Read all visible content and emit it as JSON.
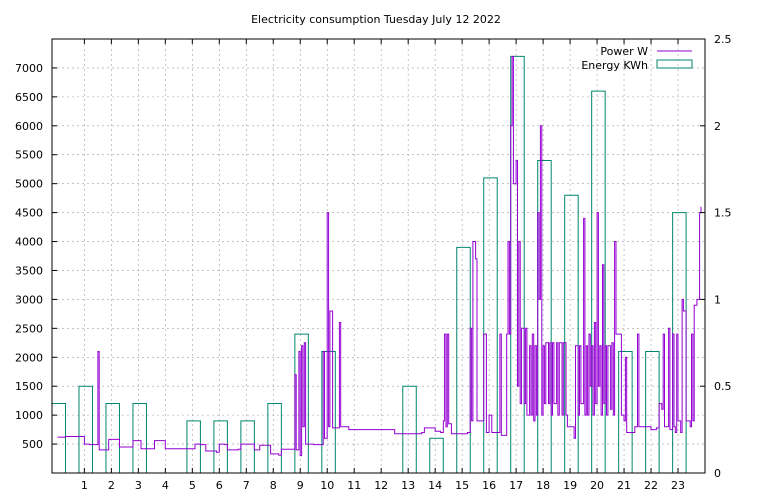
{
  "chart_data": {
    "type": "line",
    "title": "Electricity consumption Tuesday July 12 2022",
    "legend_position": "top-right",
    "grid": true,
    "x_axis": {
      "range": [
        -0.2,
        24
      ],
      "ticks": [
        1,
        2,
        3,
        4,
        5,
        6,
        7,
        8,
        9,
        10,
        11,
        12,
        13,
        14,
        15,
        16,
        17,
        18,
        19,
        20,
        21,
        22,
        23
      ]
    },
    "y_left": {
      "label": "",
      "range": [
        0,
        7500
      ],
      "ticks": [
        500,
        1000,
        1500,
        2000,
        2500,
        3000,
        3500,
        4000,
        4500,
        5000,
        5500,
        6000,
        6500,
        7000
      ]
    },
    "y_right": {
      "label": "",
      "range": [
        0,
        2.5
      ],
      "ticks": [
        0,
        0.5,
        1,
        1.5,
        2,
        2.5
      ]
    },
    "series": [
      {
        "name": "Power W",
        "axis": "left",
        "color": "#9400d3",
        "points": [
          [
            0.0,
            620
          ],
          [
            0.3,
            630
          ],
          [
            0.6,
            630
          ],
          [
            0.9,
            630
          ],
          [
            1.0,
            500
          ],
          [
            1.2,
            490
          ],
          [
            1.4,
            490
          ],
          [
            1.5,
            2100
          ],
          [
            1.55,
            400
          ],
          [
            1.8,
            400
          ],
          [
            1.9,
            580
          ],
          [
            2.1,
            580
          ],
          [
            2.3,
            450
          ],
          [
            2.6,
            450
          ],
          [
            2.8,
            560
          ],
          [
            3.0,
            560
          ],
          [
            3.1,
            420
          ],
          [
            3.5,
            420
          ],
          [
            3.6,
            560
          ],
          [
            3.9,
            560
          ],
          [
            4.0,
            420
          ],
          [
            4.5,
            420
          ],
          [
            5.0,
            420
          ],
          [
            5.1,
            500
          ],
          [
            5.3,
            490
          ],
          [
            5.5,
            380
          ],
          [
            5.9,
            360
          ],
          [
            6.0,
            500
          ],
          [
            6.2,
            490
          ],
          [
            6.3,
            400
          ],
          [
            6.7,
            410
          ],
          [
            6.8,
            500
          ],
          [
            7.2,
            500
          ],
          [
            7.3,
            400
          ],
          [
            7.5,
            480
          ],
          [
            7.8,
            480
          ],
          [
            7.9,
            330
          ],
          [
            8.2,
            310
          ],
          [
            8.3,
            410
          ],
          [
            8.6,
            410
          ],
          [
            8.8,
            1700
          ],
          [
            8.85,
            400
          ],
          [
            8.95,
            2100
          ],
          [
            9.0,
            300
          ],
          [
            9.05,
            2200
          ],
          [
            9.1,
            800
          ],
          [
            9.15,
            2250
          ],
          [
            9.2,
            500
          ],
          [
            9.5,
            490
          ],
          [
            9.8,
            490
          ],
          [
            9.85,
            2100
          ],
          [
            9.9,
            600
          ],
          [
            10.0,
            4500
          ],
          [
            10.05,
            800
          ],
          [
            10.1,
            2800
          ],
          [
            10.2,
            780
          ],
          [
            10.4,
            780
          ],
          [
            10.45,
            2600
          ],
          [
            10.5,
            800
          ],
          [
            10.8,
            750
          ],
          [
            11.5,
            750
          ],
          [
            12.0,
            750
          ],
          [
            12.5,
            680
          ],
          [
            13.0,
            680
          ],
          [
            13.5,
            700
          ],
          [
            13.6,
            780
          ],
          [
            13.9,
            780
          ],
          [
            14.0,
            720
          ],
          [
            14.2,
            700
          ],
          [
            14.3,
            900
          ],
          [
            14.35,
            2400
          ],
          [
            14.4,
            800
          ],
          [
            14.45,
            2400
          ],
          [
            14.5,
            850
          ],
          [
            14.6,
            680
          ],
          [
            15.0,
            680
          ],
          [
            15.2,
            700
          ],
          [
            15.3,
            2500
          ],
          [
            15.35,
            900
          ],
          [
            15.4,
            4000
          ],
          [
            15.5,
            3700
          ],
          [
            15.55,
            900
          ],
          [
            15.7,
            900
          ],
          [
            15.8,
            2400
          ],
          [
            15.9,
            700
          ],
          [
            16.0,
            1000
          ],
          [
            16.1,
            700
          ],
          [
            16.3,
            700
          ],
          [
            16.4,
            2400
          ],
          [
            16.45,
            650
          ],
          [
            16.6,
            650
          ],
          [
            16.65,
            2400
          ],
          [
            16.7,
            4000
          ],
          [
            16.75,
            2400
          ],
          [
            16.8,
            6000
          ],
          [
            16.85,
            7200
          ],
          [
            16.9,
            5000
          ],
          [
            17.0,
            5400
          ],
          [
            17.05,
            1500
          ],
          [
            17.1,
            4000
          ],
          [
            17.15,
            1200
          ],
          [
            17.2,
            2500
          ],
          [
            17.3,
            1200
          ],
          [
            17.35,
            2500
          ],
          [
            17.4,
            1000
          ],
          [
            17.5,
            2200
          ],
          [
            17.55,
            1000
          ],
          [
            17.6,
            2400
          ],
          [
            17.65,
            900
          ],
          [
            17.7,
            2200
          ],
          [
            17.75,
            1000
          ],
          [
            17.8,
            4500
          ],
          [
            17.85,
            3000
          ],
          [
            17.9,
            6000
          ],
          [
            17.95,
            1000
          ],
          [
            18.0,
            2200
          ],
          [
            18.05,
            1200
          ],
          [
            18.1,
            2250
          ],
          [
            18.2,
            1200
          ],
          [
            18.25,
            2250
          ],
          [
            18.3,
            1000
          ],
          [
            18.35,
            2250
          ],
          [
            18.4,
            1200
          ],
          [
            18.5,
            2250
          ],
          [
            18.55,
            1000
          ],
          [
            18.6,
            2250
          ],
          [
            18.7,
            1000
          ],
          [
            18.75,
            2250
          ],
          [
            18.85,
            1000
          ],
          [
            18.9,
            800
          ],
          [
            19.1,
            800
          ],
          [
            19.15,
            600
          ],
          [
            19.2,
            2200
          ],
          [
            19.3,
            1000
          ],
          [
            19.35,
            2200
          ],
          [
            19.4,
            1200
          ],
          [
            19.5,
            4400
          ],
          [
            19.55,
            1000
          ],
          [
            19.6,
            2200
          ],
          [
            19.65,
            1000
          ],
          [
            19.7,
            2400
          ],
          [
            19.75,
            1500
          ],
          [
            19.8,
            2200
          ],
          [
            19.85,
            1000
          ],
          [
            19.9,
            2600
          ],
          [
            19.95,
            1200
          ],
          [
            20.0,
            4500
          ],
          [
            20.05,
            1500
          ],
          [
            20.1,
            2200
          ],
          [
            20.15,
            1000
          ],
          [
            20.2,
            3600
          ],
          [
            20.25,
            1200
          ],
          [
            20.3,
            2200
          ],
          [
            20.35,
            1000
          ],
          [
            20.4,
            2200
          ],
          [
            20.5,
            1100
          ],
          [
            20.55,
            2250
          ],
          [
            20.6,
            1000
          ],
          [
            20.65,
            4000
          ],
          [
            20.7,
            2400
          ],
          [
            20.8,
            2400
          ],
          [
            20.9,
            1000
          ],
          [
            21.0,
            900
          ],
          [
            21.05,
            2000
          ],
          [
            21.1,
            700
          ],
          [
            21.3,
            700
          ],
          [
            21.4,
            800
          ],
          [
            21.5,
            2400
          ],
          [
            21.55,
            800
          ],
          [
            21.8,
            800
          ],
          [
            22.0,
            750
          ],
          [
            22.2,
            780
          ],
          [
            22.3,
            1200
          ],
          [
            22.4,
            1100
          ],
          [
            22.45,
            2400
          ],
          [
            22.5,
            800
          ],
          [
            22.6,
            800
          ],
          [
            22.65,
            2500
          ],
          [
            22.7,
            750
          ],
          [
            22.8,
            2400
          ],
          [
            22.85,
            800
          ],
          [
            22.9,
            700
          ],
          [
            22.95,
            2400
          ],
          [
            23.0,
            900
          ],
          [
            23.1,
            700
          ],
          [
            23.15,
            3000
          ],
          [
            23.2,
            2800
          ],
          [
            23.3,
            900
          ],
          [
            23.45,
            800
          ],
          [
            23.5,
            2400
          ],
          [
            23.55,
            900
          ],
          [
            23.6,
            2900
          ],
          [
            23.7,
            3000
          ],
          [
            23.8,
            4500
          ],
          [
            23.85,
            4600
          ]
        ]
      },
      {
        "name": "Energy KWh",
        "axis": "right",
        "color": "#00876b",
        "style": "steps-boxes",
        "bars": [
          [
            0,
            0.4
          ],
          [
            1,
            0.5
          ],
          [
            2,
            0.4
          ],
          [
            3,
            0.4
          ],
          [
            4,
            0
          ],
          [
            5,
            0.3
          ],
          [
            6,
            0.3
          ],
          [
            7,
            0.3
          ],
          [
            8,
            0.4
          ],
          [
            9,
            0.8
          ],
          [
            10,
            0.7
          ],
          [
            11,
            0
          ],
          [
            12,
            0
          ],
          [
            13,
            0.5
          ],
          [
            14,
            0.2
          ],
          [
            15,
            1.3
          ],
          [
            16,
            1.7
          ],
          [
            17,
            2.4
          ],
          [
            18,
            1.8
          ],
          [
            19,
            1.6
          ],
          [
            20,
            2.2
          ],
          [
            21,
            0.7
          ],
          [
            22,
            0.7
          ],
          [
            23,
            1.5
          ]
        ]
      }
    ]
  }
}
